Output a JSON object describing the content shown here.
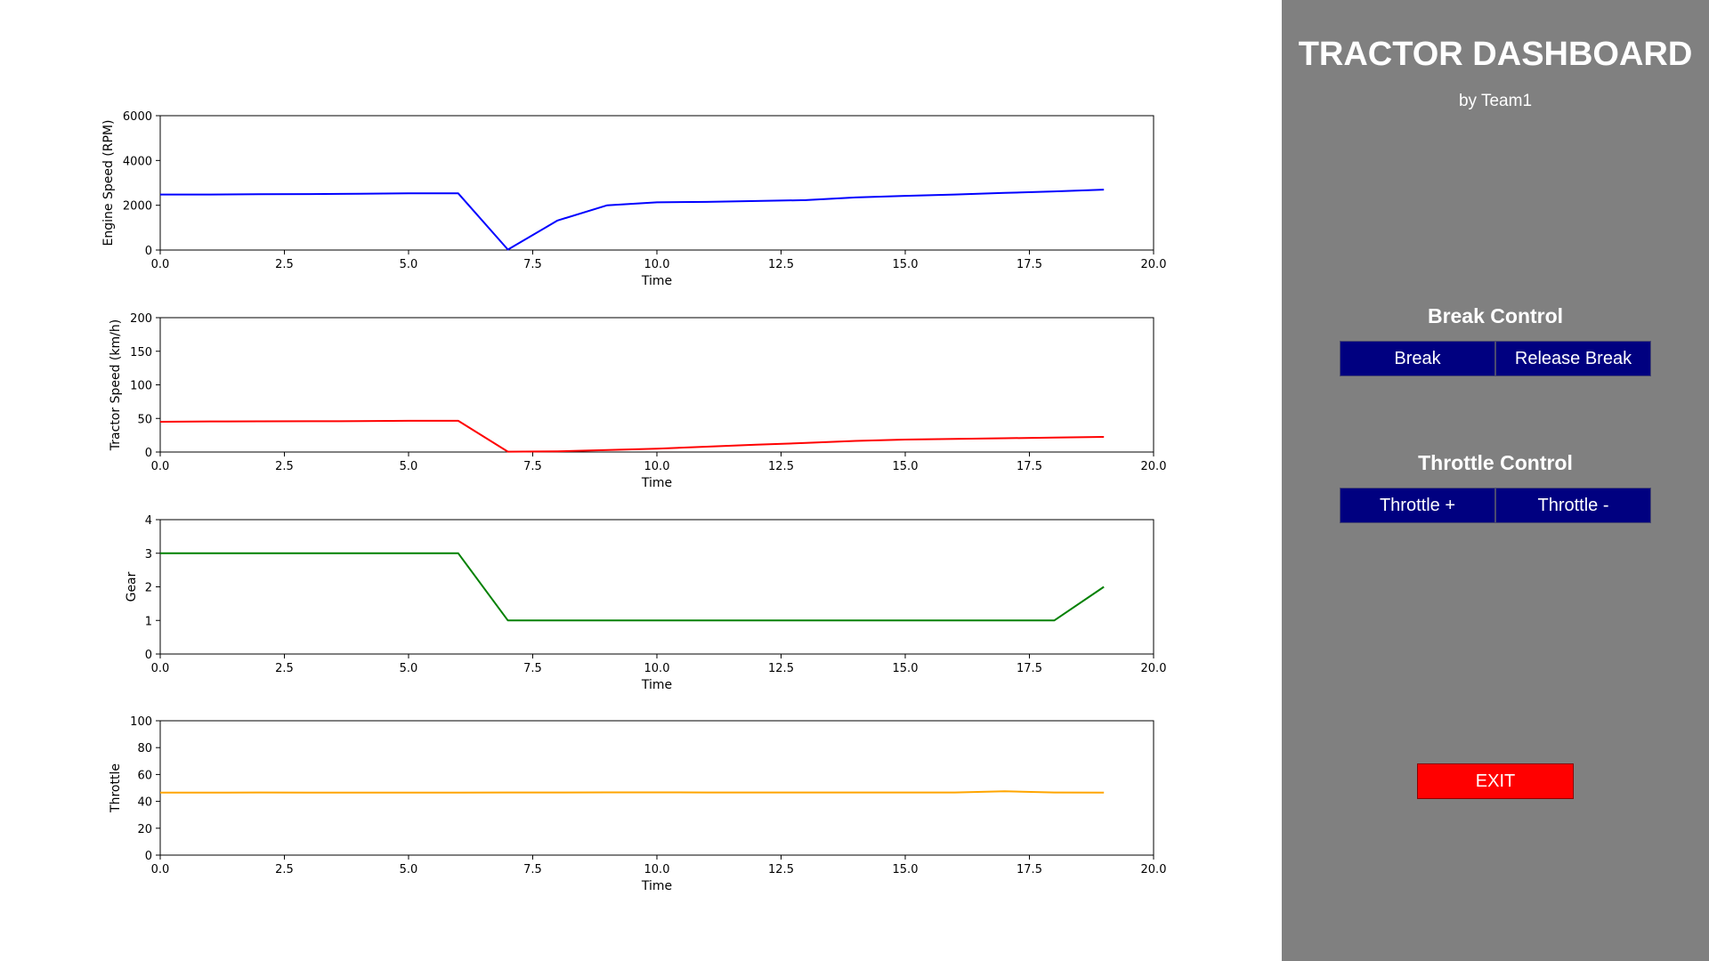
{
  "panel": {
    "title": "TRACTOR DASHBOARD",
    "subtitle": "by Team1",
    "break_control": {
      "heading": "Break Control",
      "break_label": "Break",
      "release_label": "Release Break"
    },
    "throttle_control": {
      "heading": "Throttle Control",
      "plus_label": "Throttle +",
      "minus_label": "Throttle -"
    },
    "exit_label": "EXIT",
    "colors": {
      "panel_bg": "#808080",
      "button_bg": "#000080",
      "exit_bg": "#ff0000"
    }
  },
  "chart_data": [
    {
      "type": "line",
      "title": "",
      "xlabel": "Time",
      "ylabel": "Engine Speed (RPM)",
      "xlim": [
        0,
        20
      ],
      "ylim": [
        0,
        6000
      ],
      "xticks": [
        "0.0",
        "2.5",
        "5.0",
        "7.5",
        "10.0",
        "12.5",
        "15.0",
        "17.5",
        "20.0"
      ],
      "yticks": [
        "0",
        "2000",
        "4000",
        "6000"
      ],
      "grid": false,
      "color": "#0000ff",
      "x": [
        0,
        1,
        2,
        3,
        4,
        5,
        6,
        7,
        8,
        9,
        10,
        11,
        12,
        13,
        14,
        15,
        16,
        17,
        18,
        19
      ],
      "y": [
        2480,
        2480,
        2490,
        2500,
        2510,
        2530,
        2530,
        20,
        1320,
        2000,
        2130,
        2150,
        2190,
        2230,
        2350,
        2420,
        2480,
        2550,
        2620,
        2700
      ]
    },
    {
      "type": "line",
      "title": "",
      "xlabel": "Time",
      "ylabel": "Tractor Speed (km/h)",
      "xlim": [
        0,
        20
      ],
      "ylim": [
        0,
        200
      ],
      "xticks": [
        "0.0",
        "2.5",
        "5.0",
        "7.5",
        "10.0",
        "12.5",
        "15.0",
        "17.5",
        "20.0"
      ],
      "yticks": [
        "0",
        "50",
        "100",
        "150",
        "200"
      ],
      "grid": false,
      "color": "#ff0000",
      "x": [
        0,
        1,
        2,
        3,
        4,
        5,
        6,
        7,
        8,
        9,
        10,
        11,
        12,
        13,
        14,
        15,
        16,
        17,
        18,
        19
      ],
      "y": [
        45,
        45.5,
        45.7,
        45.8,
        46,
        46.5,
        46.5,
        0.5,
        1,
        3,
        5,
        8,
        11,
        13.5,
        16.5,
        18.5,
        19.5,
        20.5,
        21.5,
        22.5
      ]
    },
    {
      "type": "line",
      "title": "",
      "xlabel": "Time",
      "ylabel": "Gear",
      "xlim": [
        0,
        20
      ],
      "ylim": [
        0,
        4
      ],
      "xticks": [
        "0.0",
        "2.5",
        "5.0",
        "7.5",
        "10.0",
        "12.5",
        "15.0",
        "17.5",
        "20.0"
      ],
      "yticks": [
        "0",
        "1",
        "2",
        "3",
        "4"
      ],
      "grid": false,
      "color": "#008000",
      "x": [
        0,
        1,
        2,
        3,
        4,
        5,
        6,
        7,
        8,
        9,
        10,
        11,
        12,
        13,
        14,
        15,
        16,
        17,
        18,
        19
      ],
      "y": [
        3,
        3,
        3,
        3,
        3,
        3,
        3,
        1,
        1,
        1,
        1,
        1,
        1,
        1,
        1,
        1,
        1,
        1,
        1,
        2
      ]
    },
    {
      "type": "line",
      "title": "",
      "xlabel": "Time",
      "ylabel": "Throttle",
      "xlim": [
        0,
        20
      ],
      "ylim": [
        0,
        100
      ],
      "xticks": [
        "0.0",
        "2.5",
        "5.0",
        "7.5",
        "10.0",
        "12.5",
        "15.0",
        "17.5",
        "20.0"
      ],
      "yticks": [
        "0",
        "20",
        "40",
        "60",
        "80",
        "100"
      ],
      "grid": false,
      "color": "#ffa500",
      "x": [
        0,
        1,
        2,
        3,
        4,
        5,
        6,
        7,
        8,
        9,
        10,
        11,
        12,
        13,
        14,
        15,
        16,
        17,
        18,
        19
      ],
      "y": [
        46.5,
        46.5,
        46.6,
        46.5,
        46.5,
        46.5,
        46.5,
        46.6,
        46.6,
        46.7,
        46.7,
        46.6,
        46.6,
        46.6,
        46.6,
        46.6,
        46.6,
        47.5,
        46.6,
        46.5
      ]
    }
  ]
}
